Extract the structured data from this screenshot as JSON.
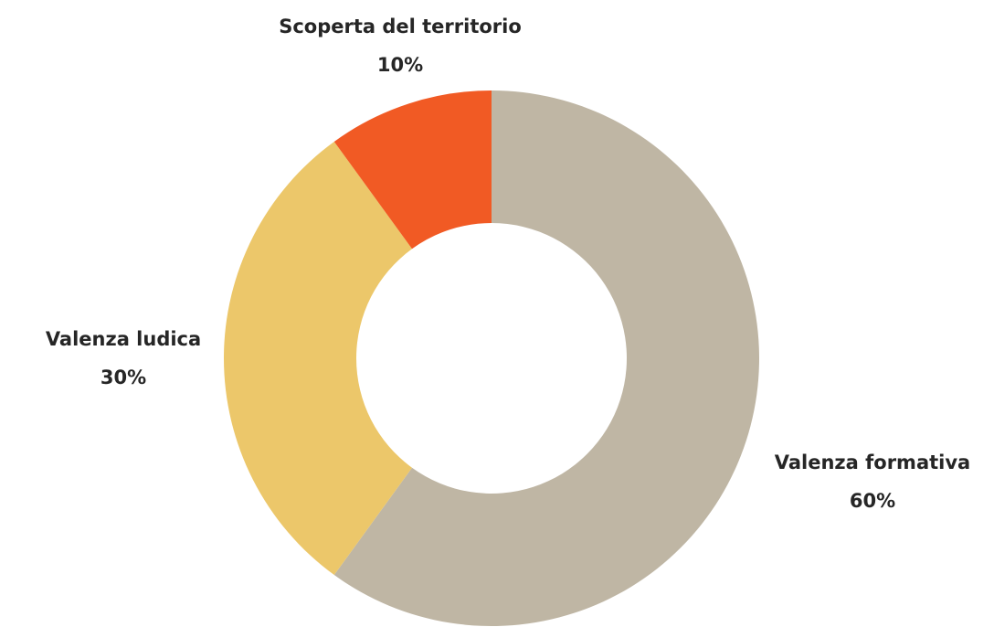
{
  "chart_data": {
    "type": "donut",
    "categories": [
      "Valenza formativa",
      "Valenza ludica",
      "Scoperta del territorio"
    ],
    "values": [
      60,
      30,
      10
    ],
    "value_labels": [
      "60%",
      "30%",
      "10%"
    ],
    "colors": [
      "#bfb6a4",
      "#ecc76a",
      "#f15a24"
    ]
  }
}
